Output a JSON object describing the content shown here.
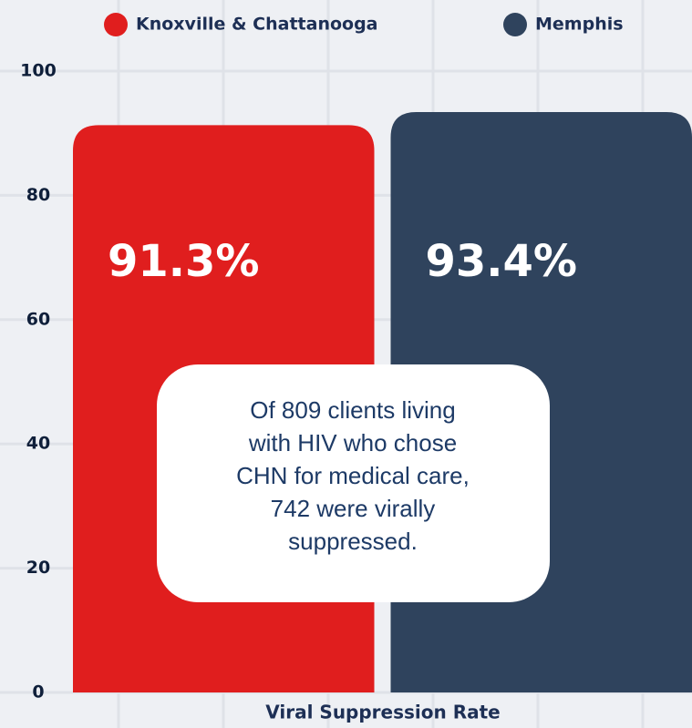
{
  "chart_data": {
    "type": "bar",
    "categories": [
      null
    ],
    "series": [
      {
        "name": "Knoxville & Chattanooga",
        "color": "#e01e1e",
        "values": [
          91.3
        ],
        "value_labels": [
          "91.3%"
        ]
      },
      {
        "name": "Memphis",
        "color": "#2f435d",
        "values": [
          93.4
        ],
        "value_labels": [
          "93.4%"
        ]
      }
    ],
    "ylim": [
      0,
      100
    ],
    "yticks": [
      0,
      20,
      40,
      60,
      80,
      100
    ],
    "grid": true,
    "x_label": "Viral Suppression Rate",
    "annotation": [
      "Of 809 clients living",
      "with HIV who chose",
      "CHN for medical care,",
      "742 were virally",
      "suppressed."
    ]
  }
}
